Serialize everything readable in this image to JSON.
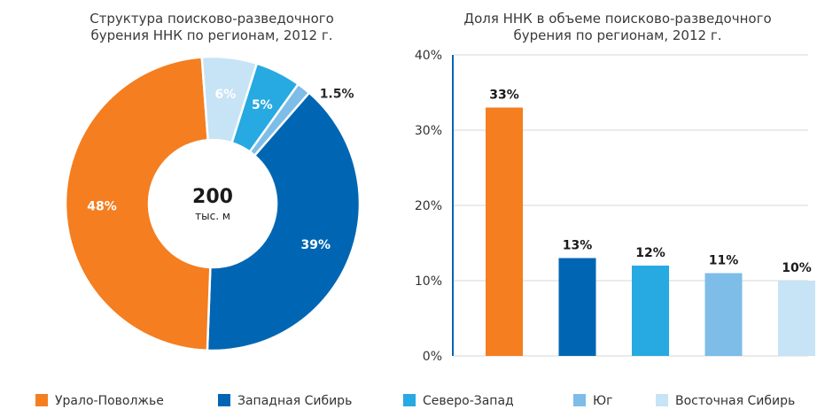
{
  "colors": {
    "ural_volga": "#F47E20",
    "west_siberia": "#0066B3",
    "north_west": "#27A9E1",
    "south": "#7DBDE8",
    "east_siberia": "#C7E3F6",
    "axis": "#0066B3",
    "grid": "#d7d7d7"
  },
  "chart_data": [
    {
      "type": "pie",
      "title_lines": [
        "Структура поисково-разведочного",
        "бурения ННК по регионам, 2012 г."
      ],
      "center": {
        "value": "200",
        "unit": "тыс. м"
      },
      "slices": [
        {
          "name": "Урало-Поволжье",
          "value": 48,
          "label": "48%",
          "color": "#F47E20"
        },
        {
          "name": "Западная Сибирь",
          "value": 39,
          "label": "39%",
          "color": "#0066B3"
        },
        {
          "name": "Северо-Запад",
          "value": 5,
          "label": "5%",
          "color": "#27A9E1"
        },
        {
          "name": "Юг",
          "value": 1.5,
          "label": "1.5%",
          "color": "#7DBDE8"
        },
        {
          "name": "Восточная Сибирь",
          "value": 6,
          "label": "6%",
          "color": "#C7E3F6"
        }
      ]
    },
    {
      "type": "bar",
      "title_lines": [
        "Доля ННК в объеме поисково-разведочного",
        "бурения по регионам, 2012 г."
      ],
      "categories": [
        "Урало-Поволжье",
        "Западная Сибирь",
        "Северо-Запад",
        "Юг",
        "Восточная Сибирь"
      ],
      "values": [
        33,
        13,
        12,
        11,
        10
      ],
      "value_labels": [
        "33%",
        "13%",
        "12%",
        "11%",
        "10%"
      ],
      "bar_colors": [
        "#F47E20",
        "#0066B3",
        "#27A9E1",
        "#7DBDE8",
        "#C7E3F6"
      ],
      "ylim": [
        0,
        40
      ],
      "yticks": [
        0,
        10,
        20,
        30,
        40
      ],
      "ytick_labels": [
        "0%",
        "10%",
        "20%",
        "30%",
        "40%"
      ],
      "grid": true
    }
  ],
  "legend": {
    "placement": "bottom",
    "items": [
      {
        "label": "Урало-Поволжье",
        "color": "#F47E20"
      },
      {
        "label": "Западная Сибирь",
        "color": "#0066B3"
      },
      {
        "label": "Северо-Запад",
        "color": "#27A9E1"
      },
      {
        "label": "Юг",
        "color": "#7DBDE8"
      },
      {
        "label": "Восточная Сибирь",
        "color": "#C7E3F6"
      }
    ]
  }
}
